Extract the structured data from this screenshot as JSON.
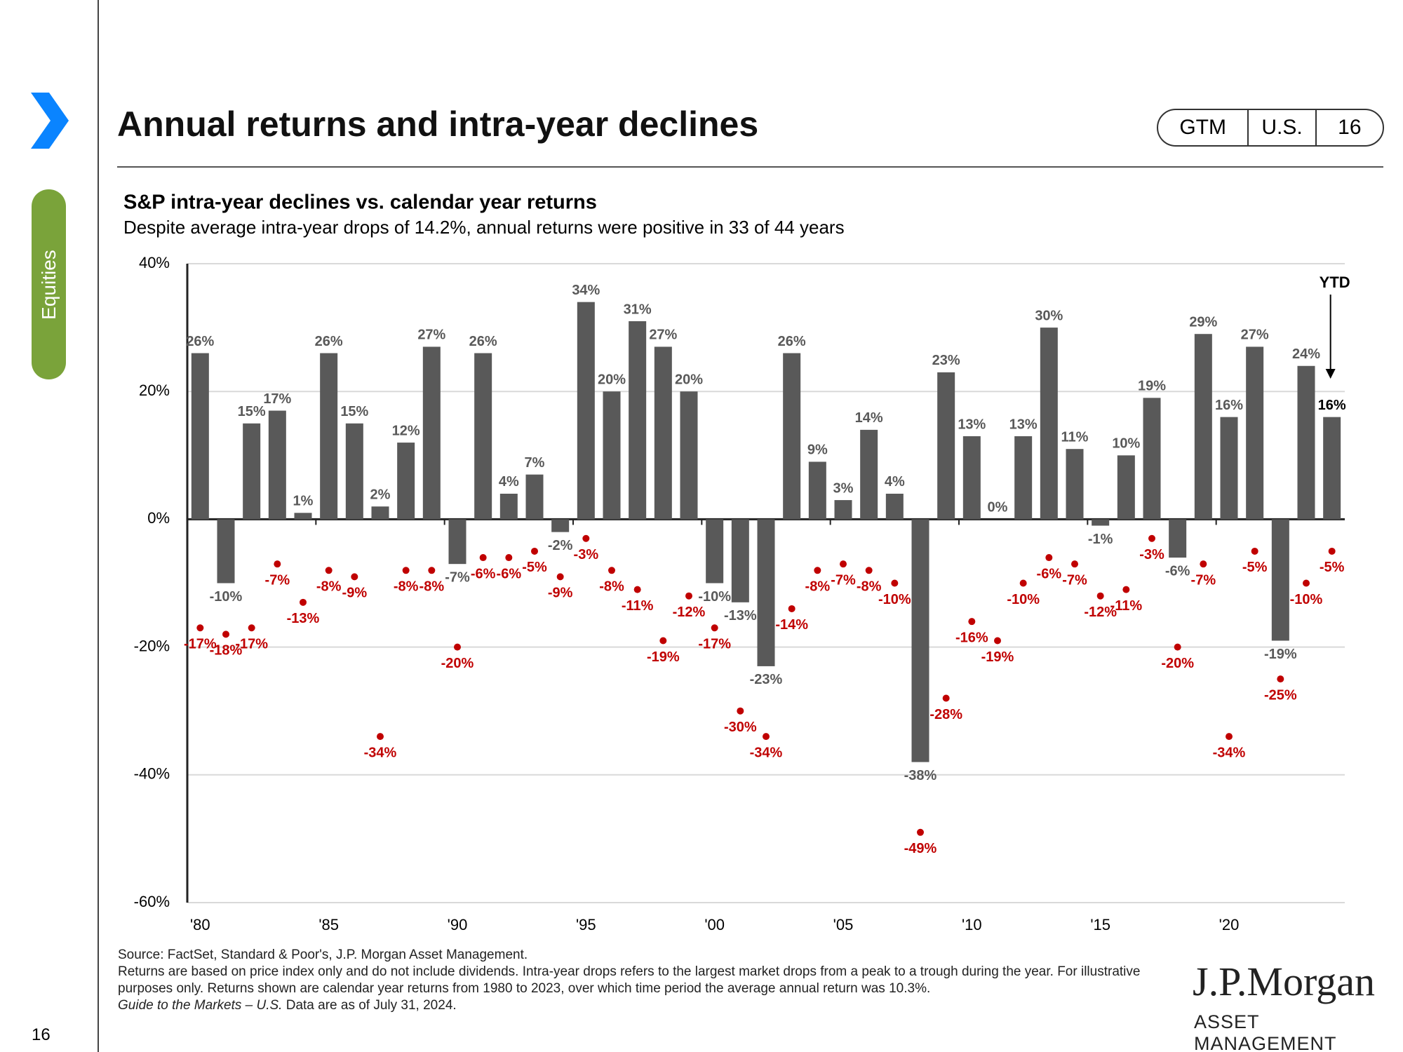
{
  "page": {
    "title": "Annual returns and intra-year declines",
    "tags": [
      "GTM",
      "U.S.",
      "16"
    ],
    "section": "Equities",
    "page_number": "16",
    "footnotes": [
      "Source: FactSet, Standard & Poor's, J.P. Morgan Asset Management.",
      "Returns are based on price index only and do not include dividends.  Intra-year drops refers to the largest market drops from a peak to a trough during the year. For illustrative purposes only. Returns shown are calendar year returns from 1980 to 2023, over which time period the average annual return was 10.3%."
    ],
    "footnote_italic": "Guide to the Markets – U.S.",
    "footnote_date": "Data are as of July 31, 2024.",
    "logo": "J.P.Morgan",
    "logo_sub": "ASSET MANAGEMENT"
  },
  "chart_data": {
    "type": "bar",
    "title": "S&P intra-year declines vs. calendar year returns",
    "subtitle": "Despite average intra-year drops of 14.2%, annual returns were positive in 33 of 44 years",
    "categories": [
      "'80",
      null,
      null,
      null,
      null,
      "'85",
      null,
      null,
      null,
      null,
      "'90",
      null,
      null,
      null,
      null,
      "'95",
      null,
      null,
      null,
      null,
      "'00",
      null,
      null,
      null,
      null,
      "'05",
      null,
      null,
      null,
      null,
      "'10",
      null,
      null,
      null,
      null,
      "'15",
      null,
      null,
      null,
      null,
      "'20",
      null,
      null,
      null,
      null
    ],
    "series": [
      {
        "type": "bar",
        "color": "#595959",
        "values": [
          26,
          -10,
          15,
          17,
          1,
          26,
          15,
          2,
          12,
          27,
          -7,
          26,
          4,
          7,
          -2,
          34,
          20,
          31,
          27,
          20,
          -10,
          -13,
          -23,
          26,
          9,
          3,
          14,
          4,
          -38,
          23,
          13,
          0,
          13,
          30,
          11,
          -1,
          10,
          19,
          -6,
          29,
          16,
          27,
          -19,
          24,
          16
        ],
        "value_labels": [
          "26%",
          "-10%",
          "15%",
          "17%",
          "1%",
          "26%",
          "15%",
          "2%",
          "12%",
          "27%",
          "-7%",
          "26%",
          "4%",
          "7%",
          "-2%",
          "34%",
          "20%",
          "31%",
          "27%",
          "20%",
          "-10%",
          "-13%",
          "-23%",
          "26%",
          "9%",
          "3%",
          "14%",
          "4%",
          "-38%",
          "23%",
          "13%",
          "0%",
          "13%",
          "30%",
          "11%",
          "-1%",
          "10%",
          "19%",
          "-6%",
          "29%",
          "16%",
          "27%",
          "-19%",
          "24%",
          "16%"
        ]
      },
      {
        "type": "scatter",
        "color": "#c00000",
        "values": [
          -17,
          -18,
          -17,
          -7,
          -13,
          -8,
          -9,
          -34,
          -8,
          -8,
          -20,
          -6,
          -6,
          -5,
          -9,
          -3,
          -8,
          -11,
          -19,
          -12,
          -17,
          -30,
          -34,
          -14,
          -8,
          -7,
          -8,
          -10,
          -49,
          -28,
          -16,
          -19,
          -10,
          -6,
          -7,
          -12,
          -11,
          -3,
          -20,
          -7,
          -34,
          -5,
          -25,
          -10,
          -5
        ],
        "value_labels": [
          "-17%",
          "-18%",
          "-17%",
          "-7%",
          "-13%",
          "-8%",
          "-9%",
          "-34%",
          "-8%",
          "-8%",
          "-20%",
          "-6%",
          "-6%",
          "-5%",
          "-9%",
          "-3%",
          "-8%",
          "-11%",
          "-19%",
          "-12%",
          "-17%",
          "-30%",
          "-34%",
          "-14%",
          "-8%",
          "-7%",
          "-8%",
          "-10%",
          "-49%",
          "-28%",
          "-16%",
          "-19%",
          "-10%",
          "-6%",
          "-7%",
          "-12%",
          "-11%",
          "-3%",
          "-20%",
          "-7%",
          "-34%",
          "-5%",
          "-25%",
          "-10%",
          "-5%"
        ]
      }
    ],
    "ylim": [
      -60,
      40
    ],
    "yticks": [
      {
        "value": -60,
        "label": "-60%"
      },
      {
        "value": -40,
        "label": "-40%"
      },
      {
        "value": -20,
        "label": "-20%"
      },
      {
        "value": 0,
        "label": "0%"
      },
      {
        "value": 20,
        "label": "20%"
      },
      {
        "value": 40,
        "label": "40%"
      }
    ],
    "grid": true,
    "annotation": "YTD"
  }
}
